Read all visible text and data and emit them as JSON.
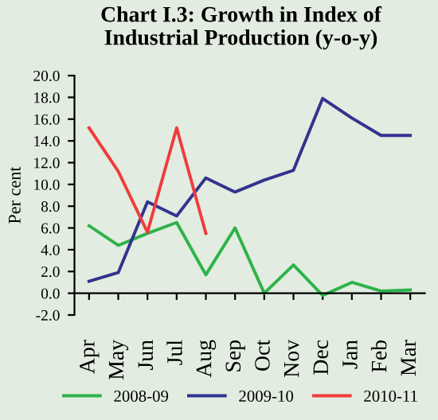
{
  "chart_data": {
    "type": "line",
    "title": "Chart I.3: Growth in Index of\nIndustrial Production (y-o-y)",
    "ylabel": "Per cent",
    "categories": [
      "Apr",
      "May",
      "Jun",
      "Jul",
      "Aug",
      "Sep",
      "Oct",
      "Nov",
      "Dec",
      "Jan",
      "Feb",
      "Mar"
    ],
    "series": [
      {
        "name": "2008-09",
        "color": "#2db34a",
        "values": [
          6.2,
          4.4,
          5.5,
          6.5,
          1.7,
          6.0,
          0.0,
          2.6,
          -0.2,
          1.0,
          0.2,
          0.3
        ]
      },
      {
        "name": "2009-10",
        "color": "#33338f",
        "values": [
          1.1,
          1.9,
          8.4,
          7.1,
          10.6,
          9.3,
          10.4,
          11.3,
          17.9,
          16.1,
          14.5,
          14.5
        ]
      },
      {
        "name": "2010-11",
        "color": "#f03c3c",
        "values": [
          15.2,
          11.2,
          5.6,
          15.2,
          5.5,
          null,
          null,
          null,
          null,
          null,
          null,
          null
        ]
      }
    ],
    "ylim": [
      -2,
      20
    ],
    "yticks": [
      {
        "value": -2,
        "label": "-2.0"
      },
      {
        "value": 0,
        "label": "0.0"
      },
      {
        "value": 2,
        "label": "2.0"
      },
      {
        "value": 4,
        "label": "4.0"
      },
      {
        "value": 6,
        "label": "6.0"
      },
      {
        "value": 8,
        "label": "8.0"
      },
      {
        "value": 10,
        "label": "10.0"
      },
      {
        "value": 12,
        "label": "12.0"
      },
      {
        "value": 14,
        "label": "14.0"
      },
      {
        "value": 16,
        "label": "16.0"
      },
      {
        "value": 18,
        "label": "18.0"
      },
      {
        "value": 20,
        "label": "20.0"
      }
    ],
    "legend": "bottom",
    "grid": false,
    "marker": "none",
    "line_style": "solid"
  }
}
